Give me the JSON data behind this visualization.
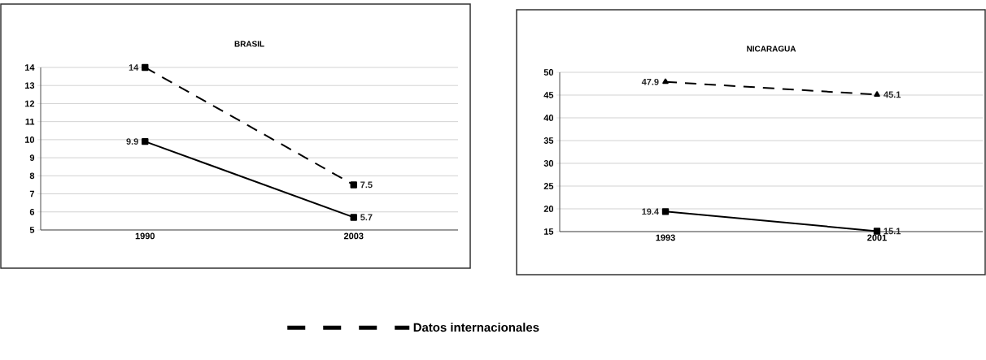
{
  "chart_data": [
    {
      "type": "line",
      "title": "BRASIL",
      "categories": [
        "1990",
        "2003"
      ],
      "ylim": [
        5,
        14
      ],
      "yticks": [
        5,
        6,
        7,
        8,
        9,
        10,
        11,
        12,
        13,
        14
      ],
      "grid": "y",
      "data_labels": true,
      "legend": "bottom",
      "series": [
        {
          "name": "Datos internacionales",
          "color": "#000000",
          "values": [
            14,
            7.5
          ],
          "line_style": "dashed",
          "marker": "square"
        },
        {
          "color": "#000000",
          "values": [
            9.9,
            5.7
          ],
          "line_style": "solid",
          "marker": "square"
        }
      ]
    },
    {
      "type": "line",
      "title": "NICARAGUA",
      "categories": [
        "1993",
        "2001"
      ],
      "ylim": [
        15,
        50
      ],
      "yticks": [
        15,
        20,
        25,
        30,
        35,
        40,
        45,
        50
      ],
      "grid": "y",
      "data_labels": true,
      "series": [
        {
          "color": "#000000",
          "values": [
            47.9,
            45.1
          ],
          "line_style": "dashed",
          "marker": "triangle"
        },
        {
          "color": "#000000",
          "values": [
            19.4,
            15.1
          ],
          "line_style": "solid",
          "marker": "square"
        }
      ]
    }
  ]
}
